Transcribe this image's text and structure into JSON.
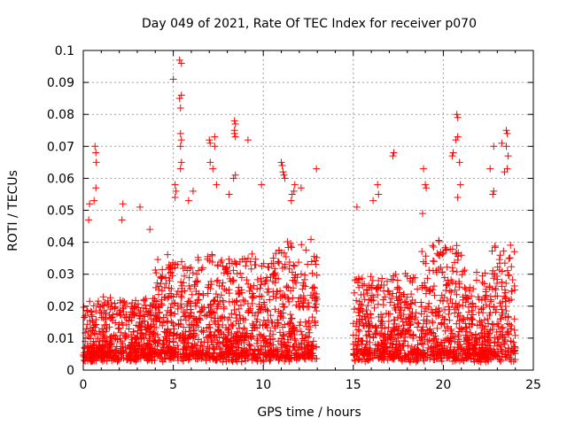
{
  "chart_data": {
    "type": "scatter",
    "title": "Day 049 of 2021, Rate Of TEC Index for receiver p070",
    "xlabel": "GPS time / hours",
    "ylabel": "ROTI / TECUs",
    "xlim": [
      0,
      25
    ],
    "ylim": [
      0,
      0.1
    ],
    "xticks": [
      0,
      5,
      10,
      15,
      20,
      25
    ],
    "yticks": [
      0,
      0.01,
      0.02,
      0.03,
      0.04,
      0.05,
      0.06,
      0.07,
      0.08,
      0.09,
      0.1
    ],
    "grid": true,
    "marker": "+",
    "color": "#ff0000",
    "data_gap_hours": [
      13.0,
      15.0
    ],
    "series": [
      {
        "points": [
          [
            0.65,
            0.07
          ],
          [
            0.7,
            0.068
          ],
          [
            0.72,
            0.065
          ],
          [
            0.7,
            0.057
          ],
          [
            0.6,
            0.053
          ],
          [
            0.35,
            0.052
          ],
          [
            0.3,
            0.047
          ],
          [
            2.2,
            0.052
          ],
          [
            2.15,
            0.047
          ],
          [
            3.15,
            0.051
          ],
          [
            3.7,
            0.044
          ],
          [
            5.0,
            0.091
          ],
          [
            5.35,
            0.097
          ],
          [
            5.45,
            0.096
          ],
          [
            5.45,
            0.086
          ],
          [
            5.35,
            0.085
          ],
          [
            5.4,
            0.082
          ],
          [
            5.4,
            0.074
          ],
          [
            5.45,
            0.072
          ],
          [
            5.4,
            0.07
          ],
          [
            5.45,
            0.065
          ],
          [
            5.4,
            0.063
          ],
          [
            5.1,
            0.058
          ],
          [
            5.15,
            0.056
          ],
          [
            5.1,
            0.054
          ],
          [
            5.85,
            0.053
          ],
          [
            6.1,
            0.056
          ],
          [
            7.0,
            0.072
          ],
          [
            7.05,
            0.071
          ],
          [
            7.3,
            0.073
          ],
          [
            7.3,
            0.07
          ],
          [
            7.05,
            0.065
          ],
          [
            7.2,
            0.063
          ],
          [
            7.4,
            0.058
          ],
          [
            8.4,
            0.078
          ],
          [
            8.45,
            0.077
          ],
          [
            8.4,
            0.075
          ],
          [
            8.4,
            0.074
          ],
          [
            8.45,
            0.073
          ],
          [
            9.15,
            0.072
          ],
          [
            8.45,
            0.061
          ],
          [
            8.35,
            0.06
          ],
          [
            8.1,
            0.055
          ],
          [
            9.9,
            0.058
          ],
          [
            11.0,
            0.065
          ],
          [
            11.05,
            0.064
          ],
          [
            11.1,
            0.062
          ],
          [
            11.15,
            0.061
          ],
          [
            11.2,
            0.06
          ],
          [
            11.75,
            0.058
          ],
          [
            11.7,
            0.056
          ],
          [
            11.6,
            0.055
          ],
          [
            11.55,
            0.053
          ],
          [
            12.1,
            0.057
          ],
          [
            12.95,
            0.063
          ],
          [
            15.2,
            0.051
          ],
          [
            16.1,
            0.053
          ],
          [
            16.35,
            0.058
          ],
          [
            16.4,
            0.055
          ],
          [
            17.25,
            0.068
          ],
          [
            17.2,
            0.067
          ],
          [
            18.9,
            0.063
          ],
          [
            19.0,
            0.058
          ],
          [
            19.05,
            0.057
          ],
          [
            18.85,
            0.049
          ],
          [
            20.5,
            0.067
          ],
          [
            20.55,
            0.068
          ],
          [
            20.75,
            0.08
          ],
          [
            20.8,
            0.079
          ],
          [
            20.8,
            0.073
          ],
          [
            20.7,
            0.072
          ],
          [
            20.9,
            0.065
          ],
          [
            20.95,
            0.058
          ],
          [
            20.8,
            0.054
          ],
          [
            22.6,
            0.063
          ],
          [
            22.8,
            0.07
          ],
          [
            22.8,
            0.056
          ],
          [
            22.75,
            0.055
          ],
          [
            23.25,
            0.071
          ],
          [
            23.5,
            0.075
          ],
          [
            23.55,
            0.074
          ],
          [
            23.5,
            0.07
          ],
          [
            23.6,
            0.067
          ],
          [
            23.55,
            0.063
          ],
          [
            23.4,
            0.062
          ]
        ]
      }
    ]
  }
}
